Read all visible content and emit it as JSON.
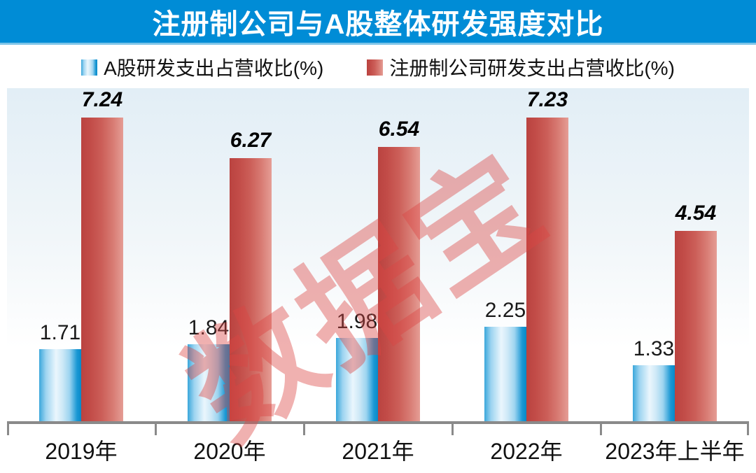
{
  "title": "注册制公司与A股整体研发强度对比",
  "watermark": "数据宝",
  "legend": [
    {
      "label": "A股研发支出占营收比(%)",
      "series": "a_share"
    },
    {
      "label": "注册制公司研发支出占营收比(%)",
      "series": "registration_system"
    }
  ],
  "colors": {
    "title_bar": "#008cd6",
    "title_bar_underline": "#7ec4e8",
    "title_text": "#ffffff",
    "axis": "#8a8a8a",
    "panel_top": "#e2eef6",
    "panel_mid": "#f1f6f9",
    "panel_bottom": "#ffffff",
    "blue_edge_left": "#3aa7db",
    "blue_light_mid": "#eaf6fd",
    "blue_soft": "#9dd4f0",
    "blue_edge_right": "#0789c8",
    "red_dark": "#ba4340",
    "red_mid": "#cc5f59",
    "red_light": "#e59d95",
    "watermark": "rgba(220,70,66,0.42)",
    "label_text": "#000000"
  },
  "chart_data": {
    "type": "bar",
    "title": "注册制公司与A股整体研发强度对比",
    "categories": [
      "2019年",
      "2020年",
      "2021年",
      "2022年",
      "2023年上半年"
    ],
    "series": [
      {
        "name": "A股研发支出占营收比(%)",
        "color_key": "blue",
        "values": [
          1.71,
          1.84,
          1.98,
          2.25,
          1.33
        ]
      },
      {
        "name": "注册制公司研发支出占营收比(%)",
        "color_key": "red",
        "values": [
          7.24,
          6.27,
          6.54,
          7.23,
          4.54
        ]
      }
    ],
    "xlabel": "",
    "ylabel": "",
    "ylim": [
      0,
      8
    ],
    "grid": false,
    "legend_position": "top",
    "value_labels": true,
    "watermark_text": "数据宝"
  }
}
